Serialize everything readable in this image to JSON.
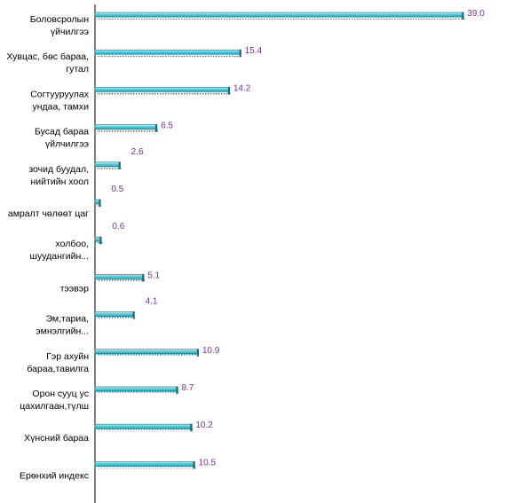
{
  "chart_data": {
    "type": "bar",
    "orientation": "horizontal",
    "categories": [
      [
        "Боловсролын",
        "үйчилгээ"
      ],
      [
        "Хувцас, бөс бараа,",
        "гутал"
      ],
      [
        "Согтууруулах",
        "ундаа, тамхи"
      ],
      [
        "Бусад бараа",
        "үйлчилгээ"
      ],
      [
        "зочид буудал,",
        "нийтийн хоол"
      ],
      [
        "амралт чөлөөт цаг"
      ],
      [
        "холбоо,",
        "шуудангийн..."
      ],
      [
        "тээвэр"
      ],
      [
        "Эм,тариа,",
        "эмнэлгийн..."
      ],
      [
        "Гэр ахуйн",
        "бараа,тавилга"
      ],
      [
        "Орон сууц ус",
        "цахилгаан,түлш"
      ],
      [
        "Хүнсний бараа"
      ],
      [
        "Ерөнхий индекс"
      ]
    ],
    "values": [
      39.0,
      15.4,
      14.2,
      6.5,
      2.6,
      0.5,
      0.6,
      5.1,
      4.1,
      10.9,
      8.7,
      10.2,
      10.5
    ],
    "value_labels": [
      "39.0",
      "15.4",
      "14.2",
      "6.5",
      "2.6",
      "0.5",
      "0.6",
      "5.1",
      "4.1",
      "10.9",
      "8.7",
      "10.2",
      "10.5"
    ],
    "xlim": [
      0,
      40
    ],
    "grid": false,
    "legend": "none",
    "colors": {
      "bar": "#4fd0e0",
      "bar_highlight": "#c8f4fa",
      "bar_shadow": "#1a6a78",
      "value_label": "#7030a0",
      "axis": "#000000"
    }
  }
}
